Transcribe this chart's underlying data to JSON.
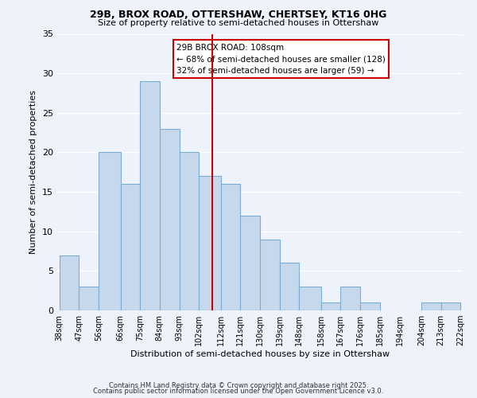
{
  "title1": "29B, BROX ROAD, OTTERSHAW, CHERTSEY, KT16 0HG",
  "title2": "Size of property relative to semi-detached houses in Ottershaw",
  "xlabel": "Distribution of semi-detached houses by size in Ottershaw",
  "ylabel": "Number of semi-detached properties",
  "bin_edges": [
    38,
    47,
    56,
    66,
    75,
    84,
    93,
    102,
    112,
    121,
    130,
    139,
    148,
    158,
    167,
    176,
    185,
    194,
    204,
    213,
    222
  ],
  "bar_heights": [
    7,
    3,
    20,
    16,
    29,
    23,
    20,
    17,
    16,
    12,
    9,
    6,
    3,
    1,
    3,
    1,
    0,
    0,
    1,
    1
  ],
  "bar_color": "#c6d9ec",
  "bar_edgecolor": "#7aadd4",
  "vline_x": 108,
  "vline_color": "#cc0000",
  "ylim": [
    0,
    35
  ],
  "yticks": [
    0,
    5,
    10,
    15,
    20,
    25,
    30,
    35
  ],
  "tick_labels": [
    "38sqm",
    "47sqm",
    "56sqm",
    "66sqm",
    "75sqm",
    "84sqm",
    "93sqm",
    "102sqm",
    "112sqm",
    "121sqm",
    "130sqm",
    "139sqm",
    "148sqm",
    "158sqm",
    "167sqm",
    "176sqm",
    "185sqm",
    "194sqm",
    "204sqm",
    "213sqm",
    "222sqm"
  ],
  "annotation_title": "29B BROX ROAD: 108sqm",
  "annotation_line1": "← 68% of semi-detached houses are smaller (128)",
  "annotation_line2": "32% of semi-detached houses are larger (59) →",
  "annotation_box_color": "#ffffff",
  "annotation_box_edgecolor": "#cc0000",
  "footnote1": "Contains HM Land Registry data © Crown copyright and database right 2025.",
  "footnote2": "Contains public sector information licensed under the Open Government Licence v3.0.",
  "background_color": "#eef2fa",
  "grid_color": "#ffffff"
}
